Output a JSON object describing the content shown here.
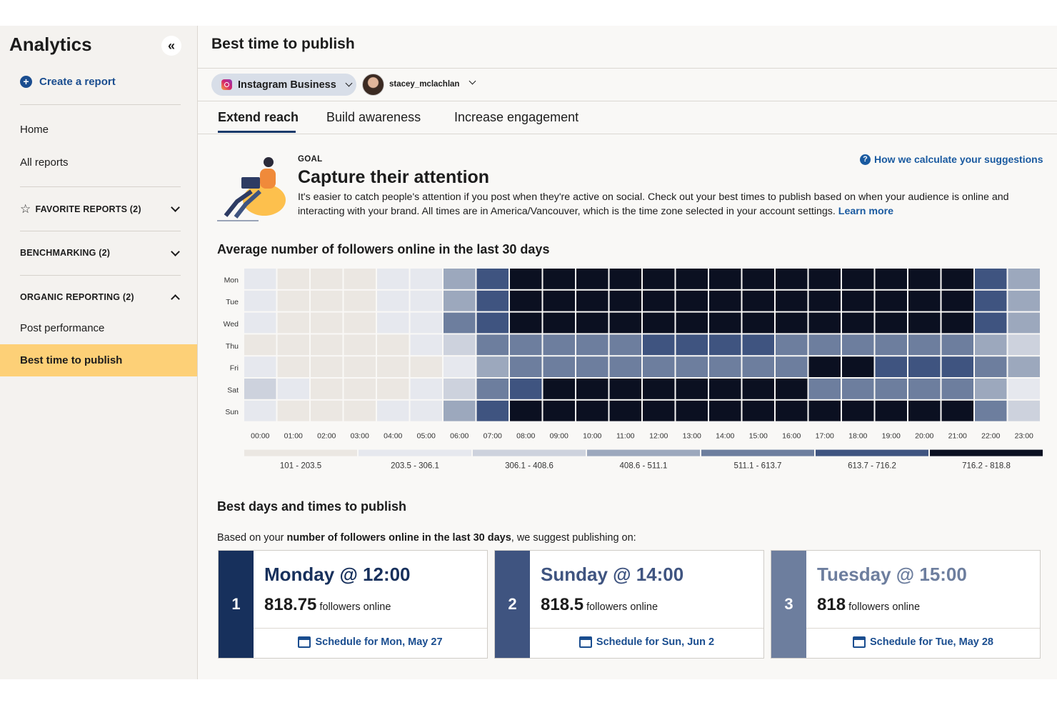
{
  "sidebar": {
    "title": "Analytics",
    "collapse_icon": "«",
    "create_report": "Create a report",
    "home": "Home",
    "all_reports": "All reports",
    "favorite_reports": "FAVORITE REPORTS (2)",
    "benchmarking": "BENCHMARKING (2)",
    "organic_reporting": "ORGANIC REPORTING (2)",
    "post_performance": "Post performance",
    "best_time": "Best time to publish",
    "active_color": "#fdd077"
  },
  "header": {
    "title": "Best time to publish",
    "network": "Instagram Business",
    "username": "stacey_mclachlan"
  },
  "tabs": [
    "Extend reach",
    "Build awareness",
    "Increase engagement"
  ],
  "goal": {
    "label": "GOAL",
    "title": "Capture their attention",
    "description": "It's easier to catch people's attention if you post when they're active on social. Check out your best times to publish based on when your audience is online and interacting with your brand. All times are in America/Vancouver, which is the time zone selected in your account settings.",
    "learn_more": "Learn more",
    "how_link": "How we calculate your suggestions"
  },
  "heatmap_title": "Average number of followers online in the last 30 days",
  "chart_data": {
    "type": "heatmap",
    "title": "Average number of followers online in the last 30 days",
    "rows": [
      "Mon",
      "Tue",
      "Wed",
      "Thu",
      "Fri",
      "Sat",
      "Sun"
    ],
    "columns": [
      "00:00",
      "01:00",
      "02:00",
      "03:00",
      "04:00",
      "05:00",
      "06:00",
      "07:00",
      "08:00",
      "09:00",
      "10:00",
      "11:00",
      "12:00",
      "13:00",
      "14:00",
      "15:00",
      "16:00",
      "17:00",
      "18:00",
      "19:00",
      "20:00",
      "21:00",
      "22:00",
      "23:00"
    ],
    "bucket_index_matrix": [
      [
        1,
        0,
        0,
        0,
        1,
        1,
        3,
        5,
        6,
        6,
        6,
        6,
        6,
        6,
        6,
        6,
        6,
        6,
        6,
        6,
        6,
        6,
        5,
        3
      ],
      [
        1,
        0,
        0,
        0,
        1,
        1,
        3,
        5,
        6,
        6,
        6,
        6,
        6,
        6,
        6,
        6,
        6,
        6,
        6,
        6,
        6,
        6,
        5,
        3
      ],
      [
        1,
        0,
        0,
        0,
        1,
        1,
        4,
        5,
        6,
        6,
        6,
        6,
        6,
        6,
        6,
        6,
        6,
        6,
        6,
        6,
        6,
        6,
        5,
        3
      ],
      [
        0,
        0,
        0,
        0,
        0,
        1,
        2,
        4,
        4,
        4,
        4,
        4,
        5,
        5,
        5,
        5,
        4,
        4,
        4,
        4,
        4,
        4,
        3,
        2
      ],
      [
        1,
        0,
        0,
        0,
        0,
        0,
        1,
        3,
        4,
        4,
        4,
        4,
        4,
        4,
        4,
        4,
        4,
        6,
        6,
        5,
        5,
        5,
        4,
        3
      ],
      [
        2,
        1,
        0,
        0,
        0,
        1,
        2,
        4,
        5,
        6,
        6,
        6,
        6,
        6,
        6,
        6,
        6,
        4,
        4,
        4,
        4,
        4,
        3,
        1
      ],
      [
        1,
        0,
        0,
        0,
        1,
        1,
        3,
        5,
        6,
        6,
        6,
        6,
        6,
        6,
        6,
        6,
        6,
        6,
        6,
        6,
        6,
        6,
        4,
        2
      ]
    ],
    "legend": [
      {
        "label": "101 - 203.5",
        "color": "#ebe7e2"
      },
      {
        "label": "203.5 - 306.1",
        "color": "#e6e8ee"
      },
      {
        "label": "306.1 - 408.6",
        "color": "#cdd2dd"
      },
      {
        "label": "408.6 - 511.1",
        "color": "#9ca8bd"
      },
      {
        "label": "511.1 - 613.7",
        "color": "#6d7e9e"
      },
      {
        "label": "613.7 - 716.2",
        "color": "#3f5480"
      },
      {
        "label": "716.2 - 818.8",
        "color": "#0b1021"
      }
    ]
  },
  "best": {
    "title": "Best days and times to publish",
    "sub_prefix": "Based on your ",
    "sub_bold": "number of followers online in the last 30 days",
    "sub_suffix": ", we suggest publishing on:",
    "followers_label": "followers online",
    "cards": [
      {
        "rank": "1",
        "title": "Monday @ 12:00",
        "value": "818.75",
        "link": "Schedule for Mon, May 27",
        "color": "#17305c"
      },
      {
        "rank": "2",
        "title": "Sunday @ 14:00",
        "value": "818.5",
        "link": "Schedule for Sun, Jun 2",
        "color": "#3f5480"
      },
      {
        "rank": "3",
        "title": "Tuesday @ 15:00",
        "value": "818",
        "link": "Schedule for Tue, May 28",
        "color": "#6d7e9e"
      }
    ]
  }
}
